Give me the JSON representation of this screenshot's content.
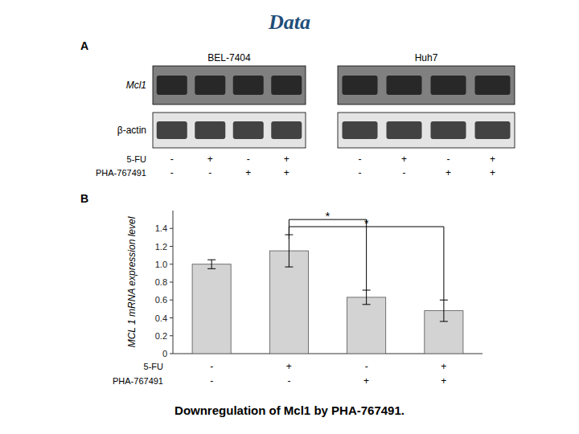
{
  "chart_data": {
    "type": "bar",
    "title": "Data",
    "subtitle": "Downregulation of Mcl1 by PHA-767491.",
    "panel_label": "B",
    "categories": [
      null,
      null,
      null,
      null
    ],
    "values": [
      1.0,
      1.15,
      0.63,
      0.48
    ],
    "errors": [
      0.05,
      0.18,
      0.08,
      0.12
    ],
    "color": "#d3d3d3",
    "ylabel": "MCL 1 mRNA expression level",
    "ylim": [
      0,
      1.6
    ],
    "yticks": [
      0,
      0.2,
      0.4,
      0.6,
      0.8,
      {
        "value": 1.0,
        "label": "1.0"
      },
      1.2,
      1.4
    ],
    "grid": false,
    "x_rows": [
      {
        "header": "5-FU",
        "labels": [
          "-",
          "+",
          "-",
          "+"
        ]
      },
      {
        "header": "PHA-767491",
        "labels": [
          "-",
          "-",
          "+",
          "+"
        ]
      }
    ],
    "annotations": [
      {
        "text": "*",
        "from_category": 1,
        "to_category": 2,
        "y": 1.5,
        "y_start": 1.33,
        "y_end": 0.71
      },
      {
        "text": "*",
        "from_category": 1,
        "to_category": 3,
        "y": 1.42,
        "y_start": 1.28,
        "y_end": 0.6
      }
    ],
    "blot": {
      "panel_label": "A",
      "columns": [
        "BEL-7404",
        "Huh7"
      ],
      "rows": [
        "Mcl1",
        "β-actin"
      ],
      "x_rows": [
        {
          "header": "5-FU",
          "labels": [
            "-",
            "+",
            "-",
            "+",
            "-",
            "+",
            "-",
            "+"
          ]
        },
        {
          "header": "PHA-767491",
          "labels": [
            "-",
            "-",
            "+",
            "+",
            "-",
            "-",
            "+",
            "+"
          ]
        }
      ]
    }
  }
}
